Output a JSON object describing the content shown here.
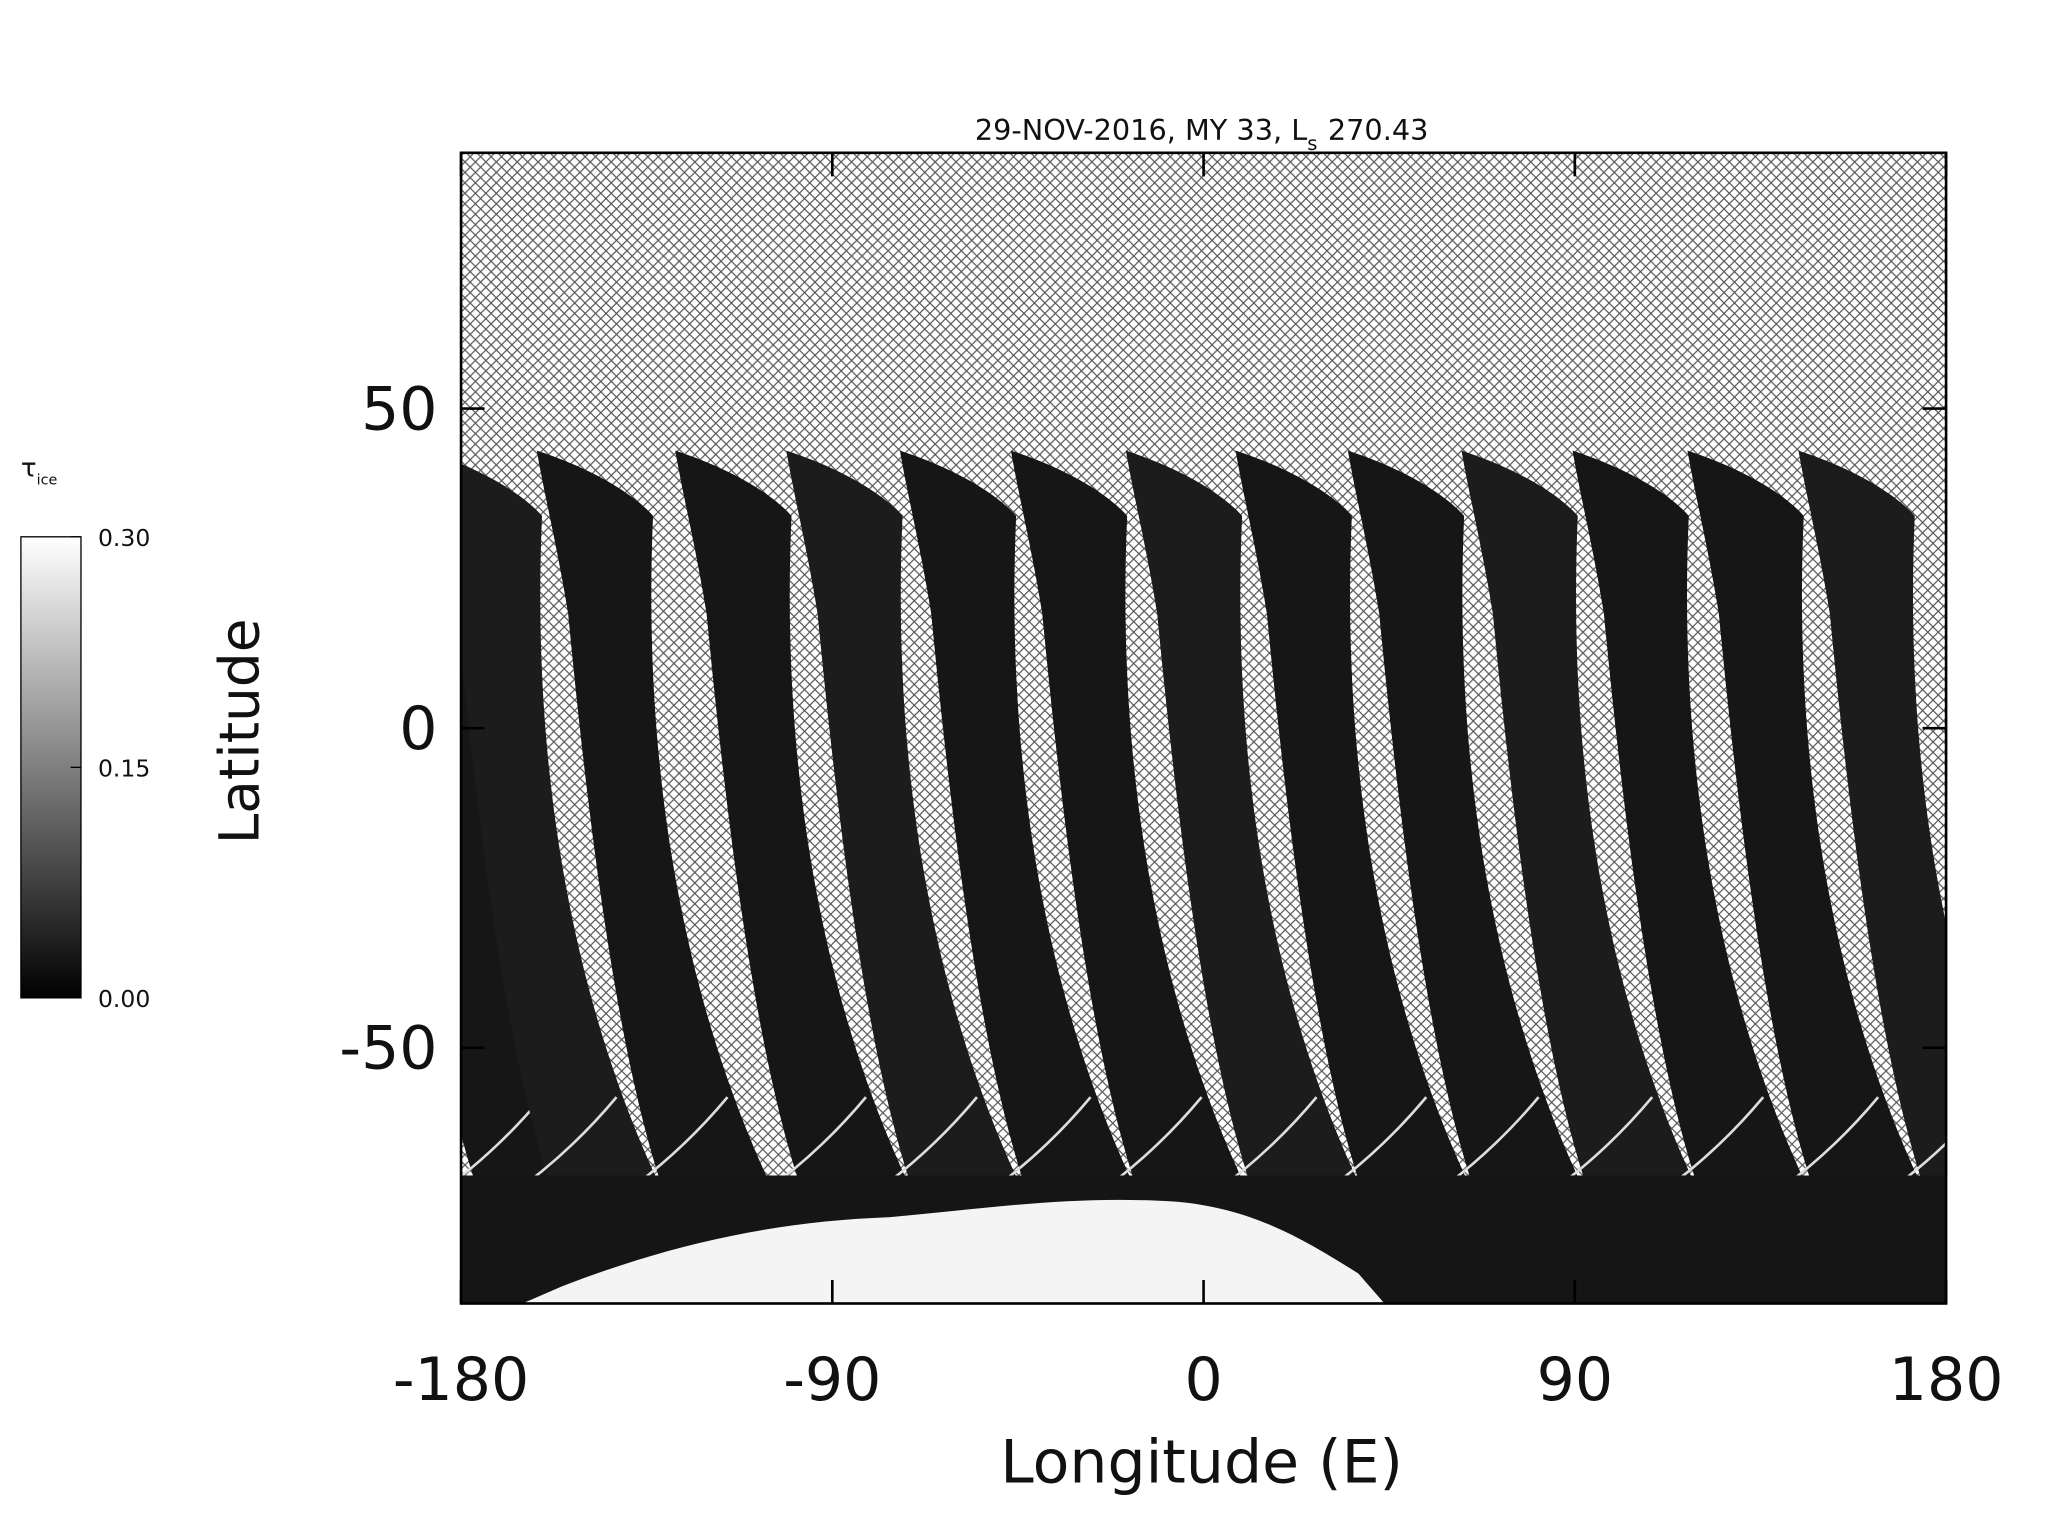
{
  "chart_data": {
    "type": "map",
    "title_main": "29-NOV-2016, MY 33,  L",
    "title_subscript": "s",
    "title_value": "270.43",
    "xlabel": "Longitude (E)",
    "ylabel": "Latitude",
    "xlim": [
      -180,
      180
    ],
    "xticks": [
      -180,
      -90,
      0,
      90,
      180
    ],
    "ylim": [
      -90,
      90
    ],
    "yticks": [
      -50,
      0,
      50
    ],
    "colorbar": {
      "label": "τ",
      "label_subscript": "ice",
      "lim": [
        0,
        0.3
      ],
      "ticks": [
        {
          "value": 0,
          "label": "0.00"
        },
        {
          "value": 0.15,
          "label": "0.15"
        },
        {
          "value": 0.3,
          "label": "0.30"
        }
      ],
      "colors": [
        "#000000",
        "#ffffff"
      ]
    }
  }
}
